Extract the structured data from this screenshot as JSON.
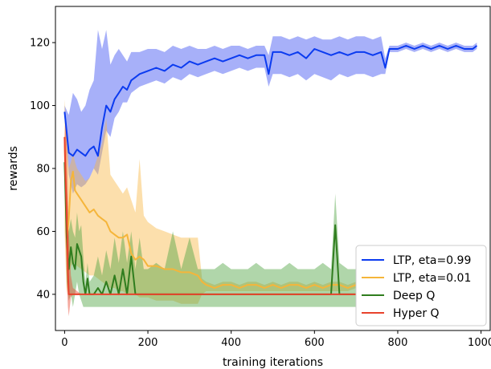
{
  "chart_data": {
    "type": "line",
    "title": "",
    "xlabel": "training iterations",
    "ylabel": "rewards",
    "xlim": [
      -22,
      1022
    ],
    "ylim": [
      28.5,
      131.5
    ],
    "xticks": [
      0,
      200,
      400,
      600,
      800,
      1000
    ],
    "yticks": [
      40,
      60,
      80,
      100,
      120
    ],
    "grid": false,
    "legend_position": "lower-right",
    "series": [
      {
        "name": "LTP, eta=0.99",
        "color": "#0b3bf0",
        "band_color": "#3c50f2",
        "x": [
          0,
          10,
          20,
          30,
          40,
          50,
          60,
          70,
          80,
          90,
          100,
          110,
          120,
          130,
          140,
          150,
          160,
          170,
          180,
          200,
          220,
          240,
          260,
          280,
          300,
          320,
          340,
          360,
          380,
          400,
          420,
          440,
          460,
          480,
          490,
          500,
          520,
          540,
          560,
          580,
          600,
          620,
          640,
          660,
          680,
          700,
          720,
          740,
          760,
          770,
          780,
          800,
          820,
          840,
          860,
          880,
          900,
          920,
          940,
          960,
          980,
          990
        ],
        "y": [
          98,
          85,
          84,
          86,
          85,
          84,
          86,
          87,
          84,
          93,
          100,
          98,
          102,
          104,
          106,
          105,
          108,
          109,
          110,
          111,
          112,
          111,
          113,
          112,
          114,
          113,
          114,
          115,
          114,
          115,
          116,
          115,
          116,
          116,
          110,
          117,
          117,
          116,
          117,
          115,
          118,
          117,
          116,
          117,
          116,
          117,
          117,
          116,
          117,
          112,
          118,
          118,
          119,
          118,
          119,
          118,
          119,
          118,
          119,
          118,
          118,
          119
        ],
        "lower": [
          96,
          78,
          72,
          75,
          74,
          75,
          77,
          80,
          78,
          85,
          92,
          90,
          96,
          98,
          101,
          101,
          104,
          105,
          106,
          107,
          108,
          107,
          109,
          108,
          110,
          109,
          110,
          111,
          110,
          111,
          112,
          111,
          112,
          112,
          106,
          110,
          110,
          109,
          110,
          108,
          110,
          109,
          108,
          110,
          109,
          110,
          110,
          109,
          110,
          110,
          117,
          117,
          118,
          117,
          118,
          117,
          118,
          117,
          118,
          117,
          117,
          118
        ],
        "upper": [
          100,
          97,
          104,
          102,
          98,
          100,
          105,
          108,
          124,
          118,
          124,
          113,
          116,
          118,
          116,
          114,
          117,
          117,
          117,
          118,
          118,
          117,
          119,
          118,
          119,
          118,
          118,
          119,
          118,
          119,
          119,
          118,
          119,
          119,
          116,
          122,
          122,
          121,
          122,
          121,
          122,
          121,
          121,
          122,
          121,
          122,
          122,
          121,
          122,
          115,
          119,
          119,
          120,
          119,
          120,
          119,
          120,
          119,
          120,
          119,
          119,
          120
        ]
      },
      {
        "name": "LTP, eta=0.01",
        "color": "#f5b53a",
        "band_color": "#f9b748",
        "x": [
          0,
          5,
          10,
          15,
          20,
          25,
          30,
          40,
          50,
          60,
          70,
          80,
          90,
          100,
          110,
          120,
          130,
          140,
          150,
          160,
          170,
          180,
          190,
          200,
          220,
          240,
          260,
          280,
          300,
          320,
          330,
          340,
          360,
          380,
          400,
          420,
          440,
          460,
          480,
          500,
          520,
          540,
          560,
          580,
          600,
          620,
          640,
          660,
          680,
          700
        ],
        "y": [
          90,
          57,
          64,
          76,
          79,
          73,
          72,
          70,
          68,
          66,
          67,
          65,
          64,
          63,
          60,
          59,
          58,
          58,
          59,
          53,
          51,
          52,
          51,
          49,
          49,
          48,
          48,
          47,
          47,
          46,
          44,
          43,
          42,
          43,
          43,
          42,
          43,
          43,
          42,
          43,
          42,
          43,
          43,
          42,
          43,
          42,
          43,
          43,
          42,
          43
        ],
        "lower": [
          60,
          40,
          47,
          49,
          50,
          50,
          49,
          48,
          47,
          46,
          46,
          45,
          44,
          43,
          42,
          42,
          41,
          41,
          40,
          40,
          40,
          39,
          39,
          39,
          38,
          38,
          38,
          37,
          37,
          37,
          40,
          41,
          41,
          41,
          41,
          41,
          41,
          41,
          41,
          41,
          41,
          41,
          41,
          41,
          41,
          41,
          41,
          41,
          41,
          42
        ],
        "upper": [
          102,
          92,
          80,
          82,
          85,
          82,
          80,
          78,
          76,
          77,
          80,
          84,
          88,
          96,
          78,
          76,
          74,
          72,
          74,
          70,
          66,
          83,
          65,
          63,
          61,
          60,
          59,
          58,
          58,
          58,
          45,
          44,
          43,
          44,
          44,
          43,
          44,
          44,
          43,
          44,
          43,
          44,
          44,
          43,
          44,
          43,
          44,
          44,
          43,
          44
        ]
      },
      {
        "name": "Deep Q",
        "color": "#2f7d1e",
        "band_color": "#4fa342",
        "x": [
          0,
          5,
          10,
          15,
          20,
          25,
          30,
          35,
          40,
          45,
          50,
          55,
          60,
          70,
          80,
          90,
          100,
          110,
          120,
          130,
          140,
          150,
          160,
          170,
          180,
          190,
          200,
          220,
          240,
          260,
          280,
          300,
          320,
          340,
          360,
          380,
          400,
          420,
          440,
          460,
          480,
          500,
          520,
          540,
          560,
          580,
          600,
          620,
          640,
          650,
          660,
          680,
          700
        ],
        "y": [
          82,
          58,
          48,
          55,
          50,
          48,
          56,
          54,
          52,
          44,
          40,
          45,
          40,
          40,
          42,
          40,
          44,
          40,
          46,
          40,
          48,
          40,
          52,
          40,
          40,
          40,
          40,
          40,
          40,
          40,
          40,
          40,
          40,
          40,
          40,
          40,
          40,
          40,
          40,
          40,
          40,
          40,
          40,
          40,
          40,
          40,
          40,
          40,
          40,
          62,
          40,
          40,
          40
        ],
        "lower": [
          82,
          44,
          38,
          40,
          36,
          40,
          44,
          40,
          38,
          36,
          36,
          36,
          36,
          36,
          36,
          36,
          36,
          36,
          36,
          36,
          36,
          36,
          36,
          36,
          36,
          36,
          36,
          36,
          36,
          36,
          36,
          36,
          36,
          36,
          36,
          36,
          36,
          36,
          36,
          36,
          36,
          36,
          36,
          36,
          36,
          36,
          36,
          36,
          36,
          36,
          36,
          36,
          36
        ],
        "upper": [
          82,
          72,
          60,
          64,
          60,
          58,
          66,
          60,
          62,
          52,
          44,
          50,
          44,
          46,
          52,
          46,
          54,
          48,
          58,
          50,
          60,
          50,
          60,
          48,
          58,
          48,
          48,
          50,
          48,
          60,
          48,
          58,
          48,
          48,
          48,
          50,
          48,
          48,
          48,
          50,
          48,
          48,
          48,
          50,
          48,
          48,
          48,
          50,
          48,
          72,
          50,
          48,
          48
        ]
      },
      {
        "name": "Hyper Q",
        "color": "#e8432c",
        "band_color": "#e8432c",
        "x": [
          0,
          2,
          4,
          6,
          8,
          10,
          15,
          20,
          40,
          60,
          80,
          100,
          200,
          300,
          400,
          500,
          600,
          700
        ],
        "y": [
          90,
          78,
          70,
          60,
          48,
          40,
          40,
          40,
          40,
          40,
          40,
          40,
          40,
          40,
          40,
          40,
          40,
          40
        ],
        "lower": [
          90,
          60,
          50,
          42,
          36,
          33,
          39,
          40,
          40,
          40,
          40,
          40,
          40,
          40,
          40,
          40,
          40,
          40
        ],
        "upper": [
          90,
          96,
          92,
          84,
          72,
          60,
          46,
          42,
          40,
          40,
          40,
          40,
          40,
          40,
          40,
          40,
          40,
          40
        ]
      }
    ]
  }
}
